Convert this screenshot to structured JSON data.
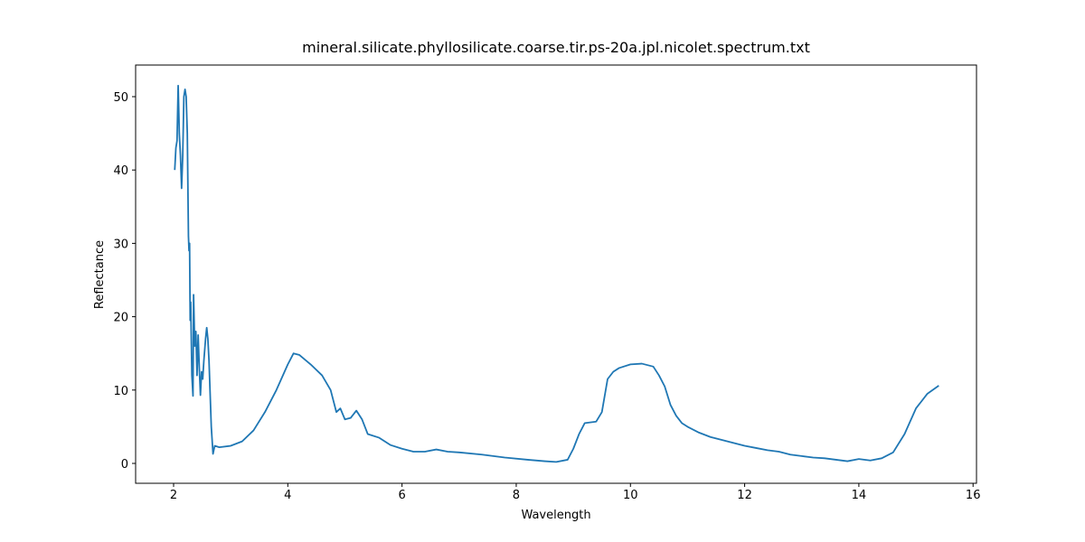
{
  "chart_data": {
    "type": "line",
    "title": "mineral.silicate.phyllosilicate.coarse.tir.ps-20a.jpl.nicolet.spectrum.txt",
    "x_label": "Wavelength",
    "y_label": "Reflectance",
    "color": "#1f77b4",
    "x": [
      2.02,
      2.04,
      2.06,
      2.08,
      2.1,
      2.12,
      2.14,
      2.16,
      2.18,
      2.2,
      2.22,
      2.24,
      2.26,
      2.27,
      2.28,
      2.29,
      2.3,
      2.32,
      2.34,
      2.35,
      2.37,
      2.39,
      2.41,
      2.43,
      2.45,
      2.47,
      2.49,
      2.51,
      2.53,
      2.56,
      2.58,
      2.6,
      2.62,
      2.66,
      2.69,
      2.72,
      2.8,
      3.0,
      3.2,
      3.4,
      3.6,
      3.8,
      4.0,
      4.1,
      4.2,
      4.4,
      4.6,
      4.75,
      4.85,
      4.92,
      5.0,
      5.1,
      5.2,
      5.3,
      5.4,
      5.6,
      5.8,
      6.0,
      6.2,
      6.4,
      6.6,
      6.8,
      7.0,
      7.4,
      7.8,
      8.2,
      8.5,
      8.7,
      8.9,
      9.0,
      9.1,
      9.2,
      9.4,
      9.5,
      9.6,
      9.7,
      9.8,
      10.0,
      10.2,
      10.4,
      10.5,
      10.6,
      10.7,
      10.8,
      10.9,
      11.0,
      11.2,
      11.4,
      11.6,
      11.8,
      12.0,
      12.2,
      12.4,
      12.6,
      12.8,
      13.0,
      13.2,
      13.4,
      13.6,
      13.8,
      14.0,
      14.2,
      14.4,
      14.6,
      14.8,
      15.0,
      15.2,
      15.4
    ],
    "values": [
      40,
      43,
      44,
      51.5,
      45,
      42,
      37.5,
      42,
      50,
      51,
      50,
      45,
      31,
      29,
      30,
      19.5,
      22,
      12,
      9.2,
      23,
      16,
      18,
      12,
      17.5,
      13,
      9.3,
      12.5,
      11.5,
      14,
      17,
      18.5,
      17,
      14,
      5,
      1.3,
      2.4,
      2.2,
      2.4,
      3,
      4.5,
      7,
      10,
      13.5,
      15,
      14.8,
      13.5,
      12,
      10,
      7,
      7.5,
      6,
      6.2,
      7.2,
      6,
      4,
      3.5,
      2.5,
      2,
      1.6,
      1.6,
      1.9,
      1.6,
      1.5,
      1.2,
      0.8,
      0.5,
      0.3,
      0.2,
      0.5,
      2,
      4,
      5.5,
      5.7,
      7,
      11.5,
      12.5,
      13,
      13.5,
      13.6,
      13.2,
      12,
      10.5,
      8,
      6.5,
      5.5,
      5,
      4.2,
      3.6,
      3.2,
      2.8,
      2.4,
      2.1,
      1.8,
      1.6,
      1.2,
      1.0,
      0.8,
      0.7,
      0.5,
      0.3,
      0.6,
      0.4,
      0.7,
      1.5,
      4,
      7.5,
      9.5,
      10.6
    ],
    "xlim": [
      1.335,
      16.06
    ],
    "ylim": [
      -2.71,
      54.31
    ],
    "xticks": [
      2,
      4,
      6,
      8,
      10,
      12,
      14,
      16
    ],
    "yticks": [
      0,
      10,
      20,
      30,
      40,
      50
    ]
  }
}
